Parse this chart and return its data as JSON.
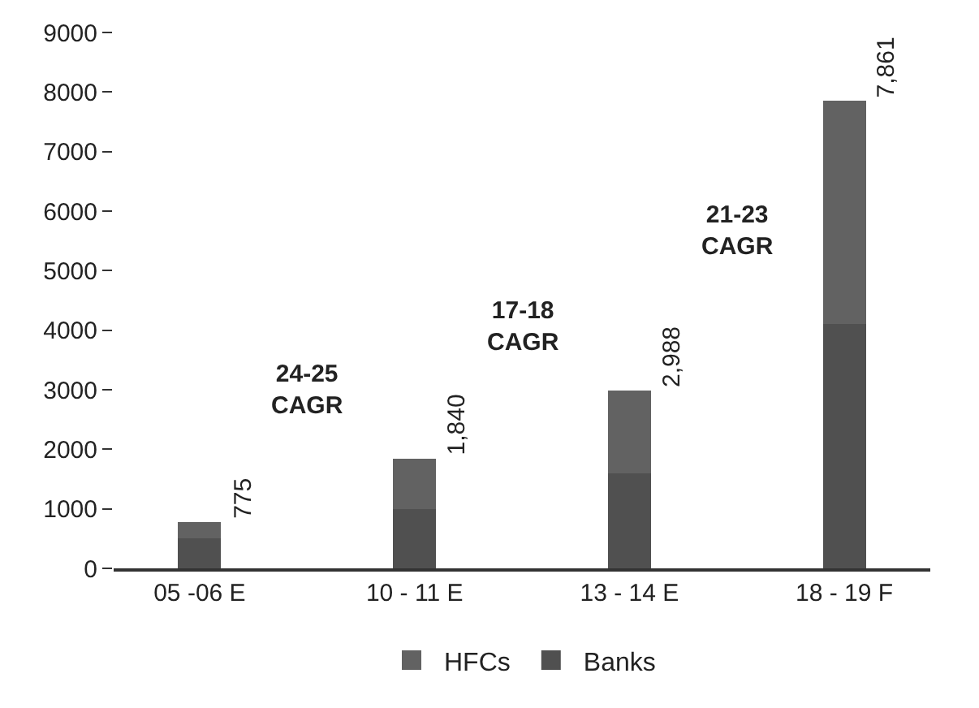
{
  "chart_data": {
    "type": "bar",
    "stacked": true,
    "categories": [
      "05 -06 E",
      "10 - 11 E",
      "13 - 14 E",
      "18 - 19 F"
    ],
    "series": [
      {
        "name": "Banks",
        "color": "#505050",
        "values": [
          500,
          1000,
          1600,
          4100
        ]
      },
      {
        "name": "HFCs",
        "color": "#626262",
        "values": [
          275,
          840,
          1388,
          3761
        ]
      }
    ],
    "totals": [
      "775",
      "1,840",
      "2,988",
      "7,861"
    ],
    "annotations": [
      "24-25\nCAGR",
      "17-18\nCAGR",
      "21-23\nCAGR"
    ],
    "ylim": [
      0,
      9000
    ],
    "yticks": [
      0,
      1000,
      2000,
      3000,
      4000,
      5000,
      6000,
      7000,
      8000,
      9000
    ],
    "legend": "bottom"
  }
}
